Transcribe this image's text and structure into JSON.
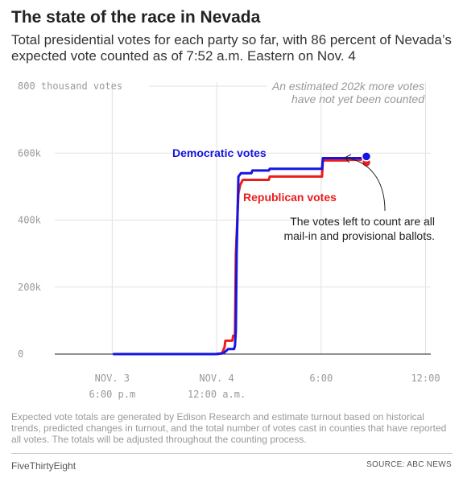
{
  "header": {
    "title": "The state of the race in Nevada",
    "subtitle": "Total presidential votes for each party so far, with 86 percent of Nevada’s expected vote counted as of 7:52 a.m. Eastern on Nov. 4"
  },
  "chart_data": {
    "type": "line",
    "x_unit": "hours from 3:00 p.m. Eastern, Nov. 3",
    "x_range": [
      -0.3,
      21.3
    ],
    "ylim": [
      0,
      800000
    ],
    "y_ticks": [
      0,
      200000,
      400000,
      600000,
      800000
    ],
    "y_tick_labels": [
      "0",
      "200k",
      "400k",
      "600k",
      "800 thousand votes"
    ],
    "x_ticks": [
      {
        "x": 3,
        "line1": "NOV. 3",
        "line2": "6:00 p.m"
      },
      {
        "x": 9,
        "line1": "NOV. 4",
        "line2": "12:00 a.m."
      },
      {
        "x": 15,
        "line1": "6:00",
        "line2": ""
      },
      {
        "x": 21,
        "line1": "12:00",
        "line2": ""
      }
    ],
    "series": [
      {
        "name": "Republican votes",
        "color": "#ed1c1c",
        "points": [
          [
            3.1,
            0
          ],
          [
            8.9,
            0
          ],
          [
            9.3,
            2000
          ],
          [
            9.45,
            20000
          ],
          [
            9.5,
            40000
          ],
          [
            9.9,
            40000
          ],
          [
            9.95,
            55000
          ],
          [
            10.05,
            55000
          ],
          [
            10.1,
            300000
          ],
          [
            10.25,
            480000
          ],
          [
            10.35,
            505000
          ],
          [
            10.5,
            520000
          ],
          [
            12.0,
            520000
          ],
          [
            12.05,
            530000
          ],
          [
            15.05,
            530000
          ],
          [
            15.1,
            578000
          ],
          [
            16.5,
            578000
          ],
          [
            16.55,
            580000
          ],
          [
            17.55,
            580000
          ],
          [
            17.6,
            572000
          ]
        ]
      },
      {
        "name": "Democratic votes",
        "color": "#1515e3",
        "points": [
          [
            3.1,
            0
          ],
          [
            9.0,
            0
          ],
          [
            9.4,
            3000
          ],
          [
            9.6,
            12000
          ],
          [
            9.65,
            15000
          ],
          [
            10.0,
            15000
          ],
          [
            10.05,
            25000
          ],
          [
            10.1,
            70000
          ],
          [
            10.15,
            300000
          ],
          [
            10.2,
            420000
          ],
          [
            10.25,
            530000
          ],
          [
            10.4,
            540000
          ],
          [
            11.0,
            540000
          ],
          [
            11.05,
            548000
          ],
          [
            12.0,
            548000
          ],
          [
            12.05,
            553000
          ],
          [
            15.05,
            553000
          ],
          [
            15.1,
            585000
          ],
          [
            17.5,
            585000
          ],
          [
            17.6,
            590000
          ]
        ]
      }
    ],
    "annotations": {
      "top_note": [
        "An estimated 202k more votes",
        "have not yet been counted"
      ],
      "callout": [
        "The votes left to count are all",
        "mail-in and provisional ballots."
      ]
    }
  },
  "footnote": "Expected vote totals are generated by Edison Research and estimate turnout based on historical trends, predicted changes in turnout, and the total number of votes cast in counties that have reported all votes. The totals will be adjusted throughout the counting process.",
  "footer": {
    "brand": "FiveThirtyEight",
    "source": "SOURCE: ABC NEWS"
  }
}
